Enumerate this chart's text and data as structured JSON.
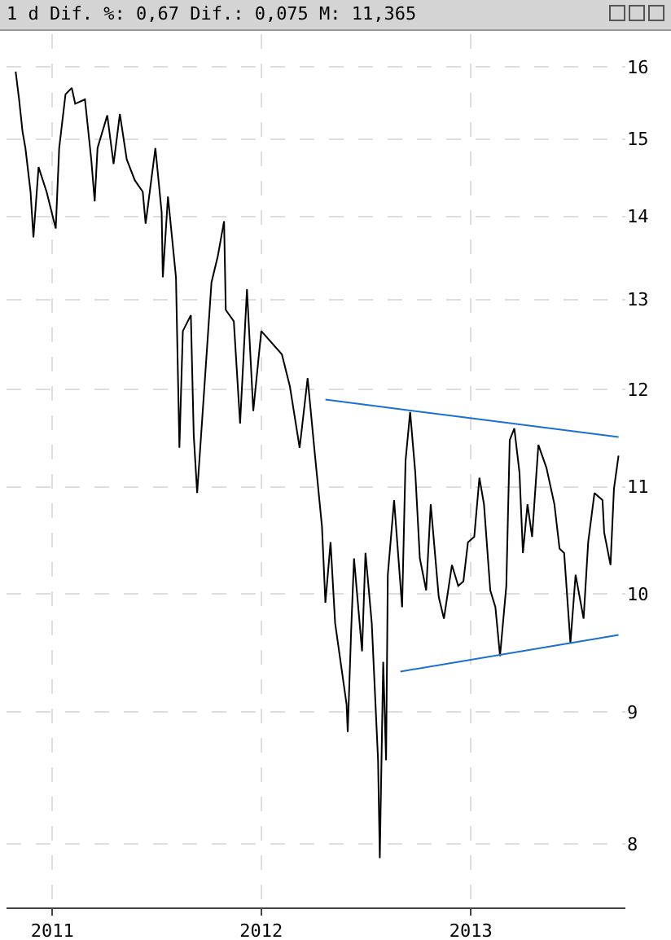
{
  "chart_data": {
    "type": "line",
    "title": "1 d Dif. %: 0,67 Dif.: 0,075 M: 11,365",
    "log": true,
    "grid": true,
    "xlim": [
      "2010-10-13",
      "2013-09-28"
    ],
    "xticks": [
      {
        "value": "2011-01-01",
        "label": "2011"
      },
      {
        "value": "2012-01-01",
        "label": "2012"
      },
      {
        "value": "2013-01-01",
        "label": "2013"
      }
    ],
    "ylim": [
      7.56,
      16.47
    ],
    "yticks": [
      8,
      9,
      10,
      11,
      12,
      13,
      14,
      15,
      16
    ],
    "series": [
      {
        "color": "#000000",
        "x": [
          "2010-10-29",
          "2010-11-04",
          "2010-11-10",
          "2010-11-15",
          "2010-11-24",
          "2010-11-29",
          "2010-12-08",
          "2010-12-22",
          "2011-01-07",
          "2011-01-13",
          "2011-01-24",
          "2011-02-04",
          "2011-02-10",
          "2011-02-27",
          "2011-03-10",
          "2011-03-16",
          "2011-03-21",
          "2011-04-07",
          "2011-04-18",
          "2011-04-29",
          "2011-05-11",
          "2011-05-25",
          "2011-06-08",
          "2011-06-13",
          "2011-06-30",
          "2011-07-11",
          "2011-07-13",
          "2011-07-22",
          "2011-08-05",
          "2011-08-11",
          "2011-08-17",
          "2011-08-31",
          "2011-09-05",
          "2011-09-11",
          "2011-09-25",
          "2011-10-06",
          "2011-10-17",
          "2011-10-28",
          "2011-10-31",
          "2011-11-14",
          "2011-11-25",
          "2011-12-07",
          "2011-12-18",
          "2012-01-01",
          "2012-01-12",
          "2012-02-06",
          "2012-02-20",
          "2012-03-08",
          "2012-03-22",
          "2012-04-02",
          "2012-04-16",
          "2012-04-22",
          "2012-05-01",
          "2012-05-09",
          "2012-05-29",
          "2012-05-31",
          "2012-06-06",
          "2012-06-11",
          "2012-06-25",
          "2012-07-01",
          "2012-07-12",
          "2012-07-23",
          "2012-07-26",
          "2012-08-01",
          "2012-08-06",
          "2012-08-09",
          "2012-08-20",
          "2012-09-03",
          "2012-09-09",
          "2012-09-17",
          "2012-09-26",
          "2012-10-04",
          "2012-10-15",
          "2012-10-23",
          "2012-11-06",
          "2012-11-15",
          "2012-11-29",
          "2012-12-10",
          "2012-12-19",
          "2012-12-27",
          "2013-01-07",
          "2013-01-16",
          "2013-01-24",
          "2013-02-04",
          "2013-02-13",
          "2013-02-21",
          "2013-03-04",
          "2013-03-10",
          "2013-03-18",
          "2013-03-27",
          "2013-04-02",
          "2013-04-10",
          "2013-04-18",
          "2013-04-29",
          "2013-05-13",
          "2013-05-27",
          "2013-06-05",
          "2013-06-13",
          "2013-06-24",
          "2013-07-03",
          "2013-07-17",
          "2013-07-25",
          "2013-08-05",
          "2013-08-19",
          "2013-08-22",
          "2013-09-02",
          "2013-09-08",
          "2013-09-16"
        ],
        "values": [
          15.93,
          15.54,
          15.1,
          14.88,
          14.31,
          13.74,
          14.63,
          14.31,
          13.85,
          14.88,
          15.61,
          15.7,
          15.48,
          15.54,
          14.73,
          14.19,
          14.88,
          15.32,
          14.67,
          15.34,
          14.73,
          14.46,
          14.31,
          13.91,
          14.88,
          14.05,
          13.26,
          14.25,
          13.26,
          11.39,
          12.64,
          12.82,
          11.52,
          10.94,
          12.15,
          13.2,
          13.51,
          13.94,
          12.88,
          12.75,
          11.64,
          13.12,
          11.77,
          12.64,
          12.56,
          12.38,
          12.03,
          11.39,
          12.12,
          11.42,
          10.62,
          9.92,
          10.47,
          9.74,
          9.06,
          8.84,
          9.68,
          10.32,
          9.5,
          10.37,
          9.74,
          8.62,
          7.9,
          9.41,
          8.62,
          10.17,
          10.87,
          9.88,
          11.26,
          11.76,
          11.14,
          10.32,
          10.03,
          10.83,
          9.97,
          9.78,
          10.26,
          10.07,
          10.11,
          10.47,
          10.52,
          11.09,
          10.83,
          10.03,
          9.88,
          9.46,
          10.07,
          11.47,
          11.59,
          11.14,
          10.37,
          10.83,
          10.52,
          11.42,
          11.19,
          10.83,
          10.41,
          10.37,
          9.57,
          10.17,
          9.78,
          10.47,
          10.94,
          10.87,
          10.56,
          10.26,
          10.98,
          11.31
        ]
      },
      {
        "type": "line",
        "color": "#1a6fd6",
        "x": [
          "2012-04-22",
          "2013-09-16"
        ],
        "values": [
          11.89,
          11.5
        ]
      },
      {
        "type": "line",
        "color": "#1a6fd6",
        "x": [
          "2012-08-31",
          "2013-09-16"
        ],
        "values": [
          9.33,
          9.64
        ]
      }
    ]
  }
}
